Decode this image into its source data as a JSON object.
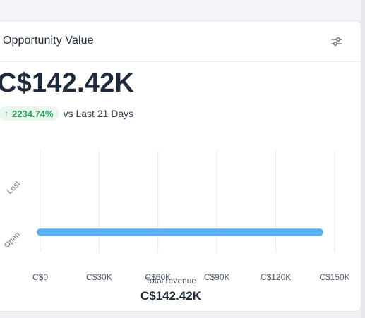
{
  "card": {
    "title": "Opportunity Value",
    "settings_icon": "sliders-icon"
  },
  "summary": {
    "value": "C$142.42K",
    "delta": "2234.74%",
    "delta_direction": "up",
    "comparison": "vs Last 21 Days"
  },
  "colors": {
    "bar": "#55b0f7",
    "positive": "#22a559",
    "positive_bg": "#e8f7ee"
  },
  "chart_data": {
    "type": "bar",
    "orientation": "horizontal",
    "categories": [
      "Lost",
      "Open"
    ],
    "values": [
      0,
      142420
    ],
    "x_ticks": [
      0,
      30000,
      60000,
      90000,
      120000,
      150000
    ],
    "x_tick_labels": [
      "C$0",
      "C$30K",
      "C$60K",
      "C$90K",
      "C$120K",
      "C$150K"
    ],
    "xlim": [
      0,
      150000
    ],
    "xlabel": "Total revenue",
    "total": "C$142.42K",
    "grid": true
  }
}
